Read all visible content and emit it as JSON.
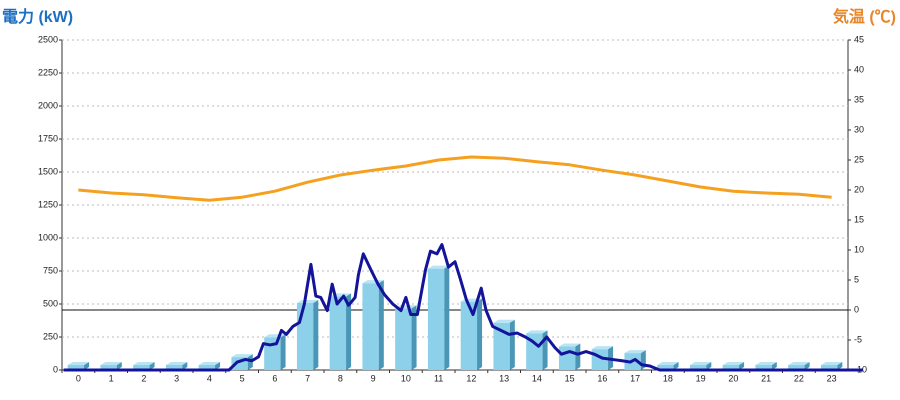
{
  "chart_data": {
    "type": "bar",
    "y_title": "電力 (kW)",
    "y2_title": "気温 (℃)",
    "categories": [
      "0",
      "1",
      "2",
      "3",
      "4",
      "5",
      "6",
      "7",
      "8",
      "9",
      "10",
      "11",
      "12",
      "13",
      "14",
      "15",
      "16",
      "17",
      "18",
      "19",
      "20",
      "21",
      "22",
      "23"
    ],
    "ylim": [
      0,
      2500
    ],
    "yticks": [
      0,
      250,
      500,
      750,
      1000,
      1250,
      1500,
      1750,
      2000,
      2250,
      2500
    ],
    "y2lim": [
      -10,
      45
    ],
    "y2ticks": [
      -10,
      -5,
      0,
      5,
      10,
      15,
      20,
      25,
      30,
      35,
      40,
      45
    ],
    "grid": true,
    "series": [
      {
        "type": "bar",
        "color": "#8dd0ea",
        "values": [
          0,
          0,
          0,
          0,
          0,
          60,
          210,
          470,
          520,
          620,
          430,
          730,
          480,
          320,
          240,
          140,
          120,
          90,
          0,
          0,
          0,
          0,
          0,
          0
        ]
      },
      {
        "type": "line",
        "color": "#14149a",
        "x": [
          -0.45,
          4.6,
          4.85,
          5.1,
          5.3,
          5.5,
          5.65,
          5.85,
          6.05,
          6.2,
          6.35,
          6.55,
          6.75,
          6.9,
          7.1,
          7.25,
          7.4,
          7.6,
          7.75,
          7.9,
          8.1,
          8.25,
          8.45,
          8.55,
          8.7,
          8.95,
          9.15,
          9.35,
          9.6,
          9.85,
          10.0,
          10.15,
          10.35,
          10.6,
          10.75,
          10.95,
          11.1,
          11.3,
          11.5,
          11.65,
          11.85,
          12.05,
          12.3,
          12.45,
          12.65,
          12.9,
          13.15,
          13.4,
          13.65,
          13.85,
          14.05,
          14.3,
          14.55,
          14.75,
          15.0,
          15.25,
          15.5,
          15.75,
          16.0,
          16.3,
          16.6,
          16.85,
          17.0,
          17.2,
          17.45,
          17.75,
          23.95
        ],
        "values": [
          0,
          0,
          60,
          80,
          70,
          100,
          200,
          190,
          200,
          300,
          270,
          330,
          360,
          500,
          800,
          560,
          550,
          450,
          650,
          500,
          560,
          490,
          550,
          720,
          880,
          750,
          650,
          570,
          500,
          450,
          550,
          420,
          420,
          760,
          900,
          880,
          950,
          780,
          820,
          700,
          530,
          420,
          620,
          450,
          330,
          300,
          270,
          280,
          250,
          220,
          180,
          250,
          170,
          120,
          140,
          120,
          140,
          120,
          90,
          80,
          70,
          60,
          80,
          40,
          30,
          0,
          0
        ]
      },
      {
        "type": "line",
        "axis": "y2",
        "color": "#f5a01e",
        "values": [
          20,
          19.5,
          19.2,
          18.7,
          18.3,
          18.8,
          19.8,
          21.3,
          22.5,
          23.3,
          24,
          25,
          25.5,
          25.3,
          24.7,
          24.2,
          23.3,
          22.5,
          21.5,
          20.5,
          19.8,
          19.5,
          19.3,
          18.8
        ]
      }
    ]
  }
}
